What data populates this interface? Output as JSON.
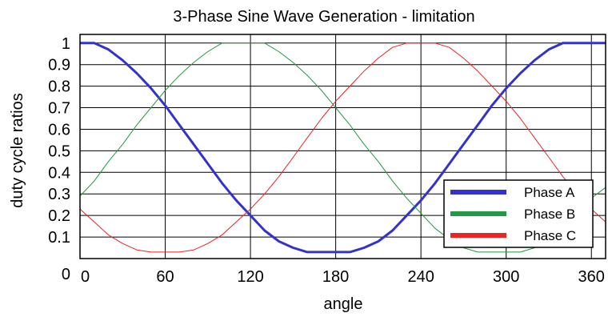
{
  "chart_data": {
    "type": "line",
    "title": "3-Phase Sine Wave Generation - limitation",
    "xlabel": "angle",
    "ylabel": "duty cycle ratios",
    "xlim": [
      0,
      370
    ],
    "ylim": [
      0,
      1.04
    ],
    "xticks": [
      0,
      60,
      120,
      180,
      240,
      300,
      360
    ],
    "xtick_labels": [
      "0",
      "60",
      "120",
      "180",
      "240",
      "300",
      "360"
    ],
    "yticks": [
      0,
      0.1,
      0.2,
      0.3,
      0.4,
      0.5,
      0.6,
      0.7,
      0.8,
      0.9,
      1
    ],
    "ytick_labels": [
      "0",
      "0.1",
      "0.2",
      "0.3",
      "0.4",
      "0.5",
      "0.6",
      "0.7",
      "0.8",
      "0.9",
      "1"
    ],
    "grid": true,
    "legend_position": "bottom-right",
    "x": [
      0,
      10,
      20,
      30,
      40,
      50,
      60,
      70,
      80,
      90,
      100,
      110,
      120,
      130,
      140,
      150,
      160,
      170,
      180,
      190,
      200,
      210,
      220,
      230,
      240,
      250,
      260,
      270,
      280,
      290,
      300,
      310,
      320,
      330,
      340,
      350,
      360,
      370
    ],
    "series": [
      {
        "name": "Phase A",
        "color": "#3333cc",
        "values": [
          1,
          1,
          0.97,
          0.92,
          0.86,
          0.79,
          0.71,
          0.62,
          0.53,
          0.44,
          0.35,
          0.27,
          0.2,
          0.13,
          0.08,
          0.05,
          0.03,
          0.03,
          0.03,
          0.03,
          0.05,
          0.08,
          0.13,
          0.2,
          0.27,
          0.35,
          0.44,
          0.53,
          0.62,
          0.71,
          0.79,
          0.86,
          0.92,
          0.97,
          1,
          1,
          1,
          1
        ]
      },
      {
        "name": "Phase B",
        "color": "#229944",
        "values": [
          0.29,
          0.36,
          0.45,
          0.53,
          0.62,
          0.7,
          0.78,
          0.85,
          0.91,
          0.96,
          1,
          1,
          1,
          1,
          0.96,
          0.91,
          0.85,
          0.78,
          0.7,
          0.62,
          0.53,
          0.45,
          0.36,
          0.28,
          0.21,
          0.14,
          0.09,
          0.05,
          0.03,
          0.03,
          0.03,
          0.03,
          0.05,
          0.09,
          0.14,
          0.21,
          0.28,
          0.33
        ]
      },
      {
        "name": "Phase C",
        "color": "#ee2222",
        "values": [
          0.23,
          0.17,
          0.11,
          0.07,
          0.04,
          0.03,
          0.03,
          0.03,
          0.04,
          0.07,
          0.11,
          0.17,
          0.23,
          0.3,
          0.38,
          0.47,
          0.56,
          0.65,
          0.73,
          0.8,
          0.87,
          0.93,
          0.98,
          1,
          1,
          1,
          0.98,
          0.93,
          0.87,
          0.8,
          0.73,
          0.65,
          0.56,
          0.47,
          0.38,
          0.3,
          0.23,
          0.17
        ]
      }
    ]
  }
}
